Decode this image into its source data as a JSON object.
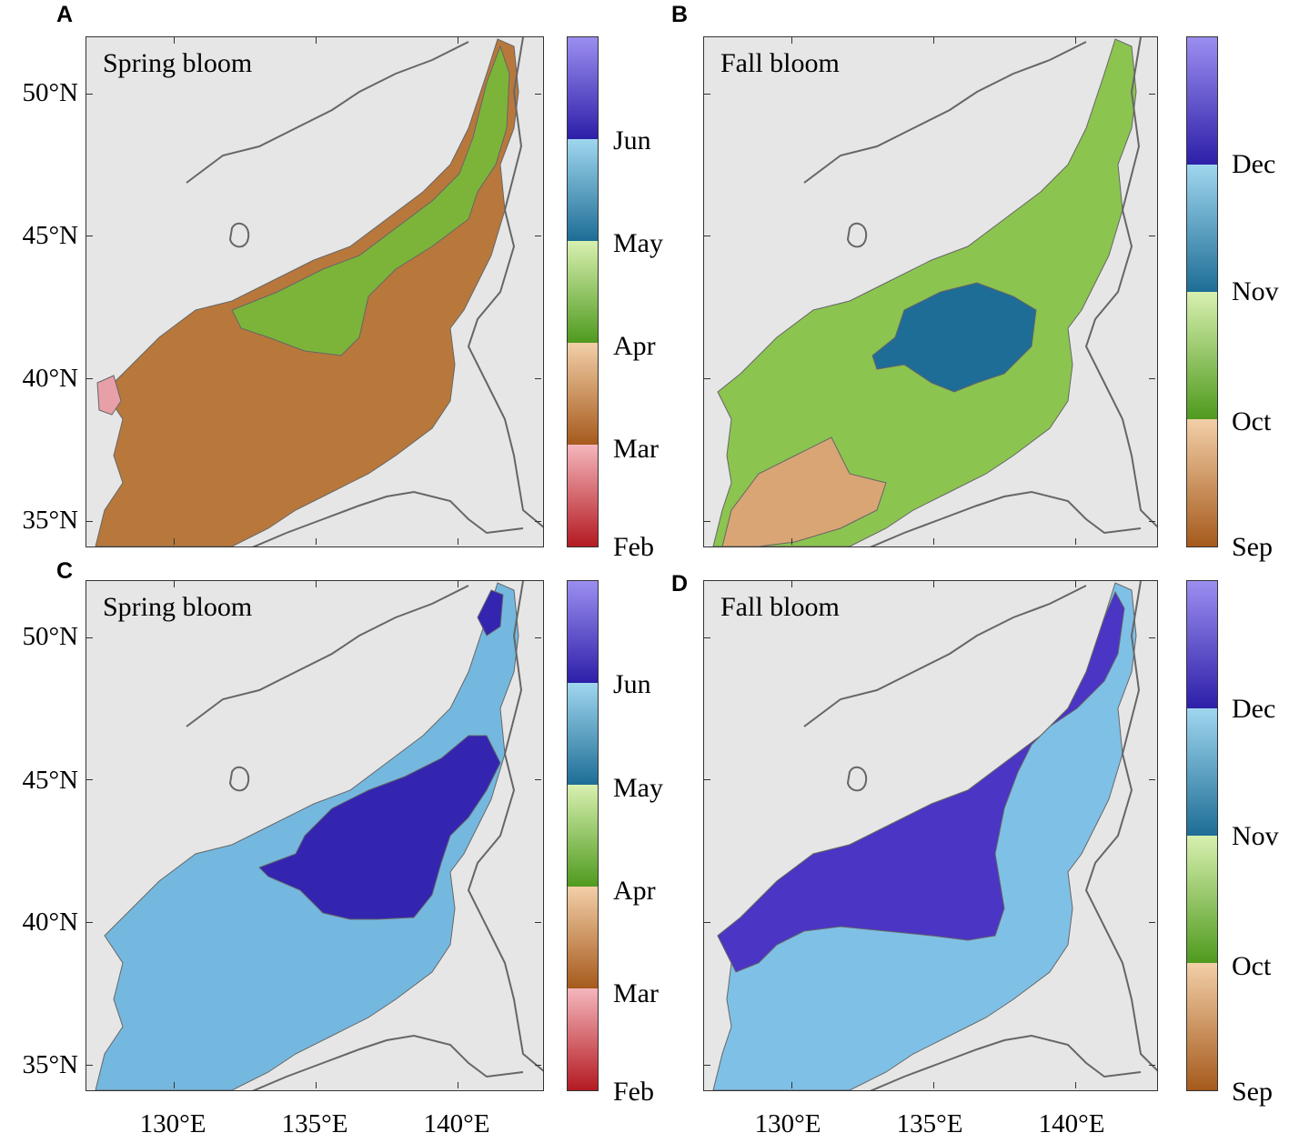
{
  "panels": [
    {
      "letter": "A",
      "title": "Spring bloom"
    },
    {
      "letter": "B",
      "title": "Fall bloom"
    },
    {
      "letter": "C",
      "title": "Spring bloom"
    },
    {
      "letter": "D",
      "title": "Fall bloom"
    }
  ],
  "lat_ticks": [
    "50°N",
    "45°N",
    "40°N",
    "35°N"
  ],
  "lon_ticks": [
    "130°E",
    "135°E",
    "140°E"
  ],
  "spring_colorbar": {
    "labels": [
      "Jun",
      "May",
      "Apr",
      "Mar",
      "Feb"
    ],
    "colors": [
      "#9b8ef0",
      "#2d1fa8",
      "#9fd6ee",
      "#1e6d96",
      "#d8f0b0",
      "#4f9a1e",
      "#f2cfa8",
      "#a65a1c",
      "#f4b6bc",
      "#b41a22"
    ]
  },
  "fall_colorbar": {
    "labels": [
      "Dec",
      "Nov",
      "Oct",
      "Sep"
    ],
    "colors": [
      "#9b8ef0",
      "#2d1fa8",
      "#9fd6ee",
      "#1e6d96",
      "#d8f0b0",
      "#4f9a1e",
      "#f2cfa8",
      "#a65a1c"
    ]
  },
  "map_colors": {
    "land": "#e6e6e6",
    "coast": "#666666",
    "panel_a": {
      "base": "#b8783c",
      "north": "#7cb43a",
      "patch": "#e8a0a8"
    },
    "panel_b": {
      "base": "#8cc450",
      "patch": "#1e6d96",
      "south": "#d9a574"
    },
    "panel_c": {
      "base": "#74b8e0",
      "patch": "#3325b0"
    },
    "panel_d": {
      "base": "#7fc0e6",
      "patch": "#4a35c4"
    }
  }
}
